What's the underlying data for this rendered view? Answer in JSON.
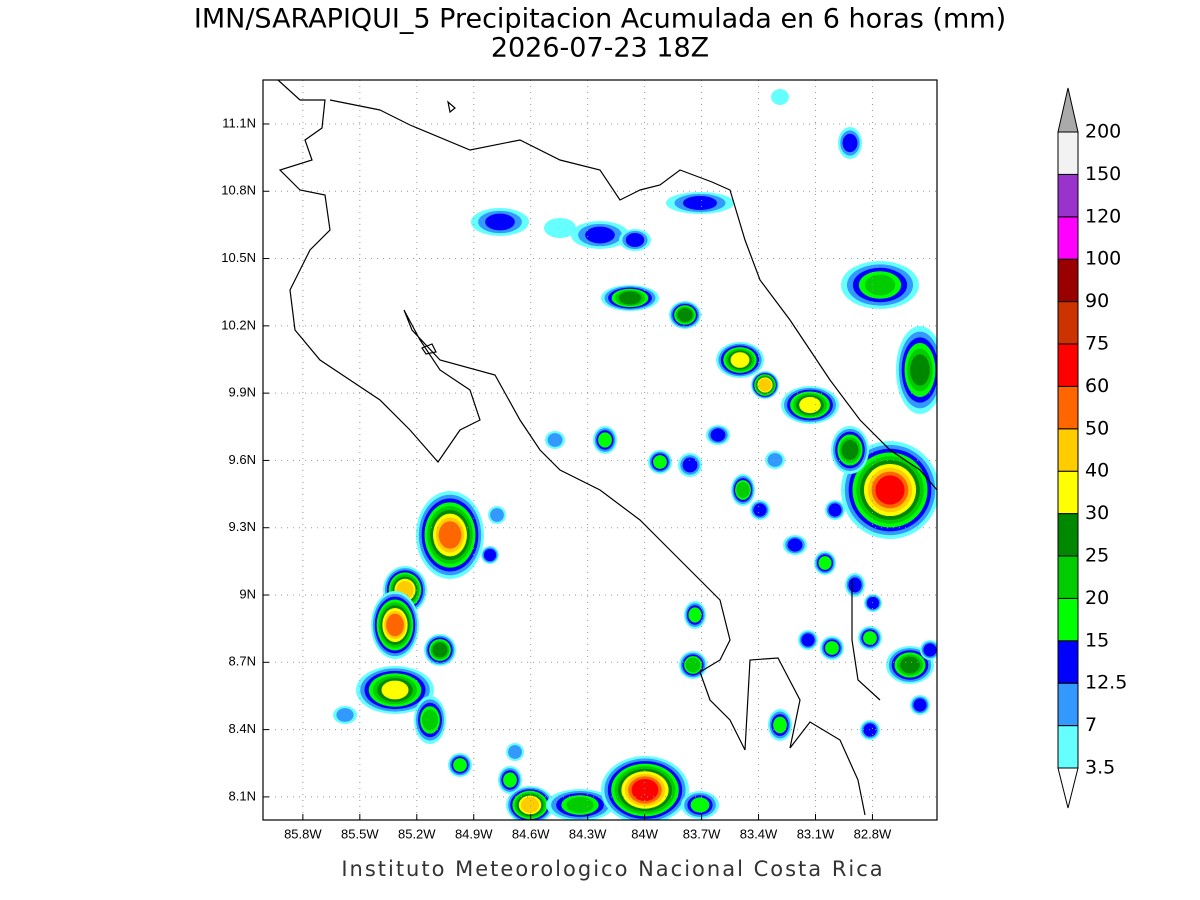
{
  "title": "IMN/SARAPIQUI_5 Precipitacion Acumulada en 6 horas (mm)",
  "subtitle": "2026-07-23 18Z",
  "footer": "Instituto Meteorologico Nacional Costa Rica",
  "map": {
    "lon_range": [
      86.01,
      82.46
    ],
    "lat_range": [
      7.997,
      11.296
    ],
    "lon_ticks": [
      {
        "value": 85.8,
        "label": "85.8W"
      },
      {
        "value": 85.5,
        "label": "85.5W"
      },
      {
        "value": 85.2,
        "label": "85.2W"
      },
      {
        "value": 84.9,
        "label": "84.9W"
      },
      {
        "value": 84.6,
        "label": "84.6W"
      },
      {
        "value": 84.3,
        "label": "84.3W"
      },
      {
        "value": 84,
        "label": "84W"
      },
      {
        "value": 83.7,
        "label": "83.7W"
      },
      {
        "value": 83.4,
        "label": "83.4W"
      },
      {
        "value": 83.1,
        "label": "83.1W"
      },
      {
        "value": 82.8,
        "label": "82.8W"
      }
    ],
    "lat_ticks": [
      {
        "value": 8.1,
        "label": "8.1N"
      },
      {
        "value": 8.4,
        "label": "8.4N"
      },
      {
        "value": 8.7,
        "label": "8.7N"
      },
      {
        "value": 9,
        "label": "9N"
      },
      {
        "value": 9.3,
        "label": "9.3N"
      },
      {
        "value": 9.6,
        "label": "9.6N"
      },
      {
        "value": 9.9,
        "label": "9.9N"
      },
      {
        "value": 10.2,
        "label": "10.2N"
      },
      {
        "value": 10.5,
        "label": "10.5N"
      },
      {
        "value": 10.8,
        "label": "10.8N"
      },
      {
        "value": 11.1,
        "label": "11.1N"
      }
    ],
    "grid": true
  },
  "colorbar": {
    "levels": [
      3.5,
      7,
      12.5,
      15,
      20,
      25,
      30,
      40,
      50,
      60,
      75,
      90,
      100,
      120,
      150,
      200
    ],
    "colors": [
      "#66ffff",
      "#3399ff",
      "#0000ff",
      "#00ff00",
      "#00cc00",
      "#008800",
      "#ffff00",
      "#ffcc00",
      "#ff6600",
      "#ff0000",
      "#cc3300",
      "#990000",
      "#ff00ff",
      "#9933cc",
      "#f2f2f2"
    ],
    "under_color": "#ffffff",
    "over_color": "#aaaaaa"
  }
}
